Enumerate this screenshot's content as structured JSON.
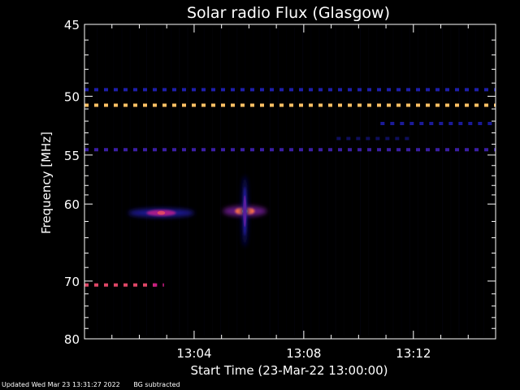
{
  "chart_data": {
    "type": "heatmap",
    "title": "Solar radio Flux (Glasgow)",
    "xlabel": "Start Time (23-Mar-22 13:00:00)",
    "ylabel": "Frequency [MHz]",
    "x_unit": "minutes after 13:00:00",
    "xlim": [
      0,
      15
    ],
    "ylim_top": 45,
    "ylim_bottom": 80,
    "y_scale": "reciprocal",
    "x_ticks": [
      {
        "value": 4,
        "label": "13:04"
      },
      {
        "value": 8,
        "label": "13:08"
      },
      {
        "value": 12,
        "label": "13:12"
      }
    ],
    "y_ticks": [
      {
        "value": 45,
        "label": "45"
      },
      {
        "value": 50,
        "label": "50"
      },
      {
        "value": 55,
        "label": "55"
      },
      {
        "value": 60,
        "label": "60"
      },
      {
        "value": 70,
        "label": "70"
      },
      {
        "value": 80,
        "label": "80"
      }
    ],
    "y_minor_ticks": [
      46,
      47,
      48,
      49,
      51,
      52,
      53,
      54,
      56,
      57,
      58,
      59,
      62,
      64,
      66,
      68,
      72,
      74,
      76,
      78
    ],
    "colormap": "black-blue-red-yellow (intensity)",
    "bands": [
      {
        "freq_mhz": 49.5,
        "x_start": 0.0,
        "x_end": 15.0,
        "intensity": 0.25,
        "dashed": true
      },
      {
        "freq_mhz": 50.7,
        "x_start": 0.0,
        "x_end": 15.0,
        "intensity": 0.9,
        "dashed": true
      },
      {
        "freq_mhz": 52.2,
        "x_start": 10.8,
        "x_end": 15.0,
        "intensity": 0.22,
        "dashed": true
      },
      {
        "freq_mhz": 53.5,
        "x_start": 9.2,
        "x_end": 12.0,
        "intensity": 0.12,
        "dashed": true
      },
      {
        "freq_mhz": 54.5,
        "x_start": 0.0,
        "x_end": 15.0,
        "intensity": 0.3,
        "dashed": true
      },
      {
        "freq_mhz": 70.6,
        "x_start": 0.0,
        "x_end": 2.6,
        "intensity": 0.65,
        "dashed": true
      },
      {
        "freq_mhz": 70.6,
        "x_start": 2.5,
        "x_end": 2.9,
        "intensity": 0.55,
        "dashed": true
      }
    ],
    "bursts": [
      {
        "time_min": 2.8,
        "freq_mhz": 61.0,
        "intensity": 0.65,
        "width_min": 2.4,
        "height_mhz": 1.0
      },
      {
        "time_min": 5.85,
        "freq_mhz": 60.8,
        "intensity": 1.0,
        "width_min": 1.6,
        "height_mhz": 1.2
      },
      {
        "time_min": 5.85,
        "freq_mhz": 60.8,
        "intensity": 0.35,
        "width_min": 0.25,
        "height_mhz": 8.0
      }
    ],
    "background": "BG subtracted"
  },
  "footer": {
    "updated": "Updated Wed Mar 23 13:31:27 2022",
    "note": "BG subtracted"
  },
  "colors": {
    "background": "#000000",
    "foreground": "#ffffff",
    "low": "#1a1aa0",
    "mid": "#c0208a",
    "high": "#ff8c40",
    "peak": "#ffff80"
  }
}
